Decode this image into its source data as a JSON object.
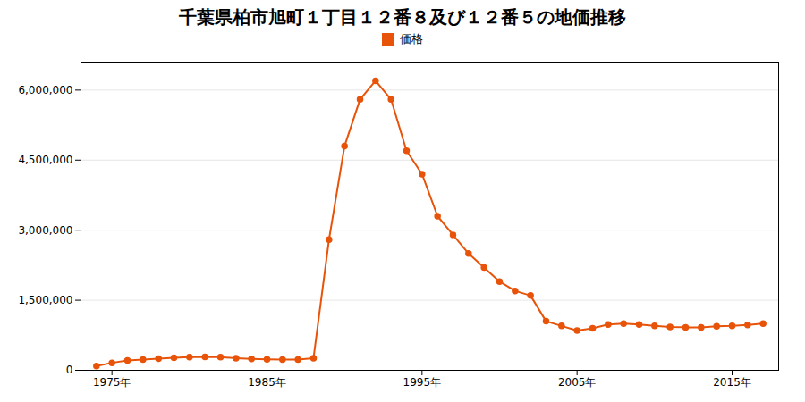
{
  "chart_data": {
    "type": "line",
    "title": "千葉県柏市旭町１丁目１２番８及び１２番５の地価推移",
    "x": [
      1974,
      1975,
      1976,
      1977,
      1978,
      1979,
      1980,
      1981,
      1982,
      1983,
      1984,
      1985,
      1986,
      1987,
      1988,
      1989,
      1990,
      1991,
      1992,
      1993,
      1994,
      1995,
      1996,
      1997,
      1998,
      1999,
      2000,
      2001,
      2002,
      2003,
      2004,
      2005,
      2006,
      2007,
      2008,
      2009,
      2010,
      2011,
      2012,
      2013,
      2014,
      2015,
      2016,
      2017
    ],
    "series": [
      {
        "name": "価格",
        "color": "#e8530a",
        "marker": "circle",
        "values": [
          90000,
          160000,
          210000,
          230000,
          250000,
          270000,
          280000,
          285000,
          280000,
          260000,
          245000,
          235000,
          230000,
          230000,
          260000,
          2800000,
          4800000,
          5800000,
          6200000,
          5800000,
          4700000,
          4200000,
          3300000,
          2900000,
          2500000,
          2200000,
          1900000,
          1700000,
          1600000,
          1050000,
          950000,
          850000,
          900000,
          980000,
          1000000,
          980000,
          950000,
          930000,
          920000,
          920000,
          940000,
          950000,
          970000,
          1000000
        ]
      }
    ],
    "xlim": [
      1973,
      2018
    ],
    "xticks": [
      {
        "value": 1975,
        "label": "1975年"
      },
      {
        "value": 1985,
        "label": "1985年"
      },
      {
        "value": 1995,
        "label": "1995年"
      },
      {
        "value": 2005,
        "label": "2005年"
      },
      {
        "value": 2015,
        "label": "2015年"
      }
    ],
    "ylim": [
      0,
      6600000
    ],
    "yticks": [
      0,
      {
        "value": 1500000,
        "label": "1,500,000"
      },
      {
        "value": 3000000,
        "label": "3,000,000"
      },
      {
        "value": 4500000,
        "label": "4,500,000"
      },
      {
        "value": 6000000,
        "label": "6,000,000"
      }
    ],
    "grid": "y",
    "legend": "top"
  }
}
